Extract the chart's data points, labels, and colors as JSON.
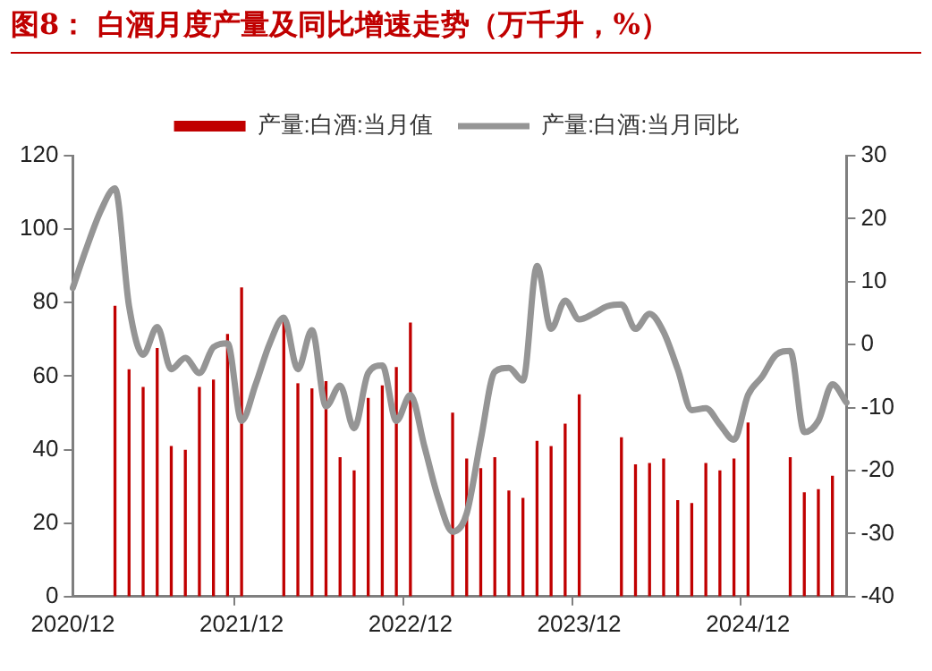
{
  "chart_data": {
    "type": "bar",
    "title": "图8：  白酒月度产量及同比增速走势（万千升，%）",
    "categories": [
      "2020/12",
      null,
      null,
      null,
      null,
      null,
      null,
      null,
      null,
      null,
      null,
      null,
      "2021/12",
      null,
      null,
      null,
      null,
      null,
      null,
      null,
      null,
      null,
      null,
      null,
      "2022/12",
      null,
      null,
      null,
      null,
      null,
      null,
      null,
      null,
      null,
      null,
      null,
      "2023/12",
      null,
      null,
      null,
      null,
      null,
      null,
      null,
      null,
      null,
      null,
      null,
      "2024/12",
      null,
      null,
      null,
      null,
      null,
      null,
      null
    ],
    "series": [
      {
        "name": "产量:白酒:当月值",
        "color": "#c00000",
        "values": [
          null,
          null,
          null,
          79,
          61.7,
          56.9,
          67.5,
          40.8,
          39.8,
          56.9,
          58.9,
          71.3,
          84,
          null,
          null,
          75,
          57.9,
          56.5,
          58.5,
          37.8,
          34.2,
          53.9,
          57.3,
          62.3,
          74.4,
          null,
          null,
          49.9,
          37.4,
          34.8,
          37.8,
          28.7,
          26.7,
          42.2,
          40.8,
          46.9,
          54.9,
          null,
          null,
          43.2,
          35.8,
          36.2,
          37.4,
          26.1,
          25.3,
          36.2,
          34.2,
          37.4,
          47.2,
          null,
          null,
          37.8,
          28.2,
          29.1,
          32.7,
          null
        ]
      },
      {
        "name": "产量:白酒:当月同比",
        "type": "line",
        "axis": "y2",
        "color": "#959595",
        "values": [
          9,
          15.5,
          21.3,
          24.8,
          6.1,
          -1.6,
          2.8,
          -3.9,
          -2.1,
          -4.5,
          -0.4,
          0.2,
          -12.1,
          -6.3,
          0.2,
          4.3,
          -3.9,
          2.3,
          -9.8,
          -6.5,
          -13.3,
          -4.5,
          -3.3,
          -12.1,
          -8,
          -16.2,
          -24.5,
          -29.7,
          -26.8,
          -15.1,
          -4.3,
          -3.7,
          -5.7,
          12.5,
          2.5,
          7,
          4,
          4.9,
          6.1,
          6.4,
          2.5,
          4.9,
          2,
          -3.9,
          -10.4,
          -10.1,
          -12.7,
          -15.1,
          -8,
          -5.1,
          -1.6,
          -1,
          -13.9,
          -12.1,
          -6.3,
          -9.2
        ]
      }
    ],
    "ylim": [
      0,
      120
    ],
    "yticks": [
      0,
      20,
      40,
      60,
      80,
      100,
      120
    ],
    "y2lim": [
      -40,
      30
    ],
    "y2ticks": [
      -40,
      -30,
      -20,
      -10,
      0,
      10,
      20,
      30
    ],
    "legend": "top",
    "marker": "none"
  }
}
